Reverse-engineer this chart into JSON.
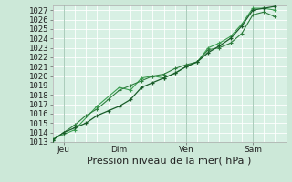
{
  "title": "Pression niveau de la mer( hPa )",
  "bg_color": "#cce8d8",
  "plot_bg_color": "#d8f0e4",
  "grid_color": "#ffffff",
  "line_color1": "#1a5c2a",
  "line_color2": "#2e7d3e",
  "line_color3": "#3a9e50",
  "ylim": [
    1013,
    1027.5
  ],
  "xlim": [
    0,
    10.5
  ],
  "yticks": [
    1013,
    1014,
    1015,
    1016,
    1017,
    1018,
    1019,
    1020,
    1021,
    1022,
    1023,
    1024,
    1025,
    1026,
    1027
  ],
  "xtick_labels": [
    "Jeu",
    "Dim",
    "Ven",
    "Sam"
  ],
  "xtick_positions": [
    0.5,
    3.0,
    6.0,
    9.0
  ],
  "vline_positions": [
    0.5,
    3.0,
    6.0,
    9.0
  ],
  "xlabel_fontsize": 8,
  "ylabel_fontsize": 6.5,
  "tick_label_fontsize": 6.5,
  "series1_x": [
    0.0,
    0.5,
    1.0,
    1.5,
    2.0,
    2.5,
    3.0,
    3.5,
    4.0,
    4.5,
    5.0,
    5.5,
    6.0,
    6.5,
    7.0,
    7.5,
    8.0,
    8.5,
    9.0,
    9.5,
    10.0
  ],
  "series1_y": [
    1013.2,
    1014.0,
    1014.5,
    1015.0,
    1015.8,
    1016.3,
    1016.8,
    1017.5,
    1018.8,
    1019.3,
    1019.8,
    1020.3,
    1021.0,
    1021.5,
    1022.5,
    1023.2,
    1024.0,
    1025.3,
    1027.0,
    1027.2,
    1027.4
  ],
  "series2_x": [
    0.0,
    0.5,
    1.0,
    1.5,
    2.0,
    2.5,
    3.0,
    3.5,
    4.0,
    4.5,
    5.0,
    5.5,
    6.0,
    6.5,
    7.0,
    7.5,
    8.0,
    8.5,
    9.0,
    9.5,
    10.0
  ],
  "series2_y": [
    1013.2,
    1014.0,
    1014.8,
    1015.8,
    1016.5,
    1017.5,
    1018.5,
    1019.0,
    1019.5,
    1020.0,
    1020.2,
    1020.8,
    1021.2,
    1021.5,
    1022.8,
    1023.0,
    1023.5,
    1024.5,
    1026.5,
    1026.8,
    1026.3
  ],
  "series3_x": [
    0.0,
    1.0,
    2.0,
    3.0,
    3.5,
    4.0,
    4.5,
    5.0,
    5.5,
    6.0,
    6.5,
    7.0,
    7.5,
    8.0,
    8.5,
    9.0,
    9.5,
    10.0
  ],
  "series3_y": [
    1013.3,
    1014.3,
    1016.8,
    1018.8,
    1018.5,
    1019.8,
    1020.0,
    1019.8,
    1020.3,
    1021.0,
    1021.5,
    1023.0,
    1023.5,
    1024.2,
    1025.5,
    1027.2,
    1027.2,
    1027.0
  ]
}
